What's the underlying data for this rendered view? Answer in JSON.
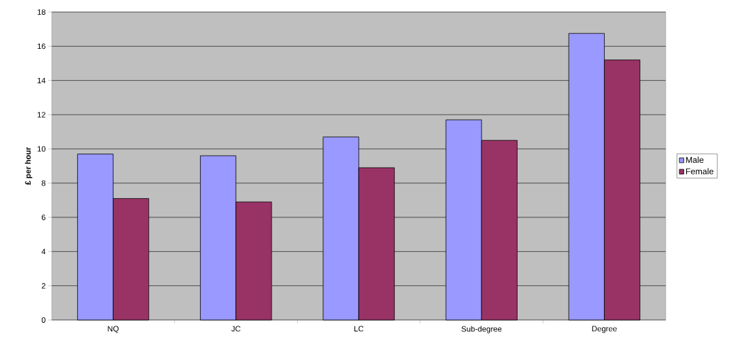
{
  "chart_data": {
    "type": "bar",
    "ylabel": "£ per hour",
    "categories": [
      "NQ",
      "JC",
      "LC",
      "Sub-degree",
      "Degree"
    ],
    "series": [
      {
        "name": "Male",
        "color": "#9999ff",
        "values": [
          9.7,
          9.6,
          10.7,
          11.7,
          16.75
        ]
      },
      {
        "name": "Female",
        "color": "#993366",
        "values": [
          7.1,
          6.9,
          8.9,
          10.5,
          15.2
        ]
      }
    ],
    "ylim": [
      0,
      18
    ],
    "yticks": [
      0,
      2,
      4,
      6,
      8,
      10,
      12,
      14,
      16,
      18
    ],
    "grid": "y",
    "legend": "right"
  }
}
